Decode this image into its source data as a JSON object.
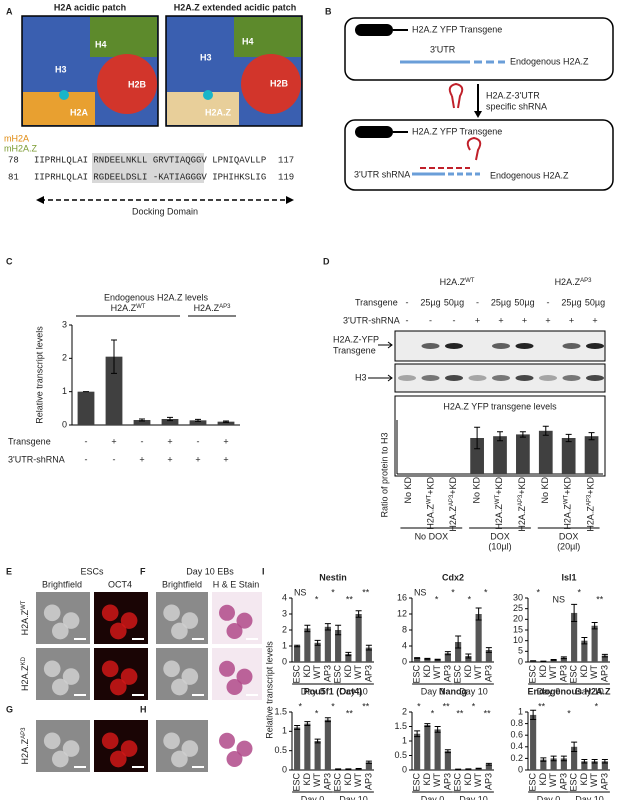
{
  "panels": {
    "A": {
      "letter": "A",
      "titles": [
        "H2A acidic patch",
        "H2A.Z extended acidic patch"
      ],
      "left_labels": [
        "H4",
        "H3",
        "H2B",
        "H2A"
      ],
      "right_labels": [
        "H4",
        "H3",
        "H2B",
        "H2A.Z"
      ],
      "seq_names": [
        "mH2A",
        "mH2A.Z"
      ],
      "seq_lines": [
        {
          "start": "78",
          "seq": "IIPRHLQLAI RNDEELNKLL GRVTIAQGGV LPNIQAVLLP",
          "end": "117"
        },
        {
          "start": "81",
          "seq": "IIPRHLQLAI RGDEELDSLI -KATIAGGGV IPHIHKSLIG",
          "end": "119"
        }
      ],
      "docking": "Docking Domain"
    },
    "B": {
      "letter": "B",
      "top_transgene": "H2A.Z YFP Transgene",
      "top_utr": "3'UTR",
      "top_endogenous": "Endogenous H2A.Z",
      "step": [
        "H2A.Z-3'UTR",
        "specific shRNA"
      ],
      "bottom_transgene": "H2A.Z YFP Transgene",
      "bottom_shrna": "3'UTR shRNA",
      "bottom_endogenous": "Endogenous H2A.Z"
    },
    "D": {
      "letter": "D",
      "groups": [
        {
          "pre": "H2A.Z",
          "sup": "WT"
        },
        {
          "pre": "H2A.Z",
          "sup": "AP3"
        }
      ],
      "row_names": [
        "Transgene",
        "3'UTR-shRNA"
      ],
      "transgene": [
        "-",
        "25µg",
        "50µg",
        "-",
        "25µg",
        "50µg",
        "-",
        "25µg",
        "50µg"
      ],
      "shrna": [
        "-",
        "-",
        "-",
        "+",
        "+",
        "+",
        "+",
        "+",
        "+"
      ],
      "blot_labels": [
        [
          "H2A.Z-YFP",
          "Transgene"
        ],
        [
          "H3"
        ]
      ]
    },
    "E": {
      "letter": "E",
      "title": "ESCs",
      "columns": [
        "Brightfield",
        "OCT4"
      ],
      "rows": [
        {
          "pre": "H2A.Z",
          "sup": "WT"
        },
        {
          "pre": "H2A.Z",
          "sup": "KD"
        }
      ]
    },
    "F": {
      "letter": "F",
      "title": "Day 10 EBs",
      "columns": [
        "Brightfield",
        "H & E Stain"
      ]
    },
    "G": {
      "letter": "G",
      "row": {
        "pre": "H2A.Z",
        "sup": "AP3"
      }
    },
    "H": {
      "letter": "H"
    },
    "I": {
      "letter": "I",
      "ylabel": "Relative transcript levels"
    }
  },
  "chart_data": [
    {
      "type": "bar",
      "panel": "C",
      "title": "Endogenous H2A.Z levels",
      "ylabel": "Relative transcript levels",
      "groups": [
        {
          "pre": "H2A.Z",
          "sup": "WT"
        },
        {
          "pre": "H2A.Z",
          "sup": "AP3"
        }
      ],
      "row_names": [
        "Transgene",
        "3'UTR-shRNA"
      ],
      "categories": [
        null,
        null,
        null,
        null,
        null,
        null
      ],
      "transgene": [
        "-",
        "+",
        "-",
        "+",
        "-",
        "+"
      ],
      "shrna": [
        "-",
        "-",
        "+",
        "+",
        "+",
        "+"
      ],
      "values": [
        1.0,
        2.05,
        0.15,
        0.18,
        0.14,
        0.1
      ],
      "errors": [
        0,
        0.5,
        0.03,
        0.05,
        0.03,
        0.02
      ],
      "ylim": [
        0,
        3
      ],
      "yticks": [
        0,
        1,
        2,
        3
      ],
      "color": "#404040"
    },
    {
      "type": "bar",
      "panel": "D",
      "title": "H2A.Z YFP transgene levels",
      "ylabel": "Ratio of protein to H3",
      "categories": [
        "No KD",
        {
          "pre": "H2A.Z",
          "sup": "WT",
          "post": "+KD"
        },
        {
          "pre": "H2A.Z",
          "sup": "AP3",
          "post": "+KD"
        },
        "No KD",
        {
          "pre": "H2A.Z",
          "sup": "WT",
          "post": "+KD"
        },
        {
          "pre": "H2A.Z",
          "sup": "AP3",
          "post": "+KD"
        },
        "No KD",
        {
          "pre": "H2A.Z",
          "sup": "WT",
          "post": "+KD"
        },
        {
          "pre": "H2A.Z",
          "sup": "AP3",
          "post": "+KD"
        }
      ],
      "groups": [
        [
          "No DOX"
        ],
        [
          "DOX",
          "(10µl)"
        ],
        [
          "DOX",
          "(20µl)"
        ]
      ],
      "values": [
        0,
        0,
        0,
        2.0,
        2.1,
        2.2,
        2.4,
        2.0,
        2.1
      ],
      "errors": [
        0,
        0,
        0,
        0.6,
        0.25,
        0.15,
        0.25,
        0.2,
        0.2
      ],
      "ylim": [
        0,
        3
      ],
      "color": "#404040"
    },
    {
      "type": "bar",
      "panel": "I",
      "title": "Nestin",
      "categories": [
        "ESC",
        "KD",
        "WT",
        "AP3",
        "ESC",
        "KD",
        "WT",
        "AP3"
      ],
      "groups": [
        "Day 0",
        "Day 10"
      ],
      "values": [
        1.0,
        2.1,
        1.2,
        2.2,
        2.0,
        0.5,
        3.0,
        0.9
      ],
      "errors": [
        0.05,
        0.2,
        0.15,
        0.2,
        0.3,
        0.1,
        0.2,
        0.15
      ],
      "ylim": [
        0,
        4
      ],
      "yticks": [
        0,
        1,
        2,
        3,
        4
      ],
      "annotations": [
        "NS",
        "*",
        "*",
        "**",
        "**"
      ],
      "color": "#555555"
    },
    {
      "type": "bar",
      "panel": "I",
      "title": "Cdx2",
      "categories": [
        "ESC",
        "KD",
        "WT",
        "AP3",
        "ESC",
        "KD",
        "WT",
        "AP3"
      ],
      "groups": [
        "Day 0",
        "Day 10"
      ],
      "values": [
        1.0,
        0.8,
        0.6,
        2.2,
        5.0,
        1.5,
        12.0,
        3.0
      ],
      "errors": [
        0.1,
        0.1,
        0.1,
        0.4,
        1.5,
        0.5,
        1.5,
        0.6
      ],
      "ylim": [
        0,
        16
      ],
      "yticks": [
        0,
        4,
        8,
        12,
        16
      ],
      "annotations": [
        "NS",
        "*",
        "*",
        "*",
        "*"
      ],
      "color": "#555555"
    },
    {
      "type": "bar",
      "panel": "I",
      "title": "Isl1",
      "categories": [
        "ESC",
        "KD",
        "WT",
        "AP3",
        "ESC",
        "KD",
        "WT",
        "AP3"
      ],
      "groups": [
        "Day 0",
        "Day 10"
      ],
      "values": [
        0.5,
        0.3,
        1.0,
        2.0,
        23.0,
        10.0,
        17.0,
        3.0
      ],
      "errors": [
        0.1,
        0.1,
        0.2,
        0.4,
        4.0,
        1.5,
        1.5,
        0.6
      ],
      "ylim": [
        0,
        30
      ],
      "yticks": [
        0,
        5,
        10,
        15,
        20,
        25,
        30
      ],
      "annotations": [
        "*",
        "NS",
        "*",
        "**"
      ],
      "color": "#555555"
    },
    {
      "type": "bar",
      "panel": "I",
      "title": "Pou5f1 (Oct4)",
      "categories": [
        "ESC",
        "KD",
        "WT",
        "AP3",
        "ESC",
        "KD",
        "WT",
        "AP3"
      ],
      "groups": [
        "Day 0",
        "Day 10"
      ],
      "values": [
        1.1,
        1.2,
        0.75,
        1.3,
        0.02,
        0.02,
        0.03,
        0.2
      ],
      "errors": [
        0.05,
        0.05,
        0.05,
        0.05,
        0.01,
        0.01,
        0.01,
        0.03
      ],
      "ylim": [
        0,
        1.5
      ],
      "yticks": [
        0,
        0.5,
        1,
        1.5
      ],
      "annotations": [
        "*",
        "*",
        "*",
        "**",
        "**"
      ],
      "color": "#555555"
    },
    {
      "type": "bar",
      "panel": "I",
      "title": "Nanog",
      "categories": [
        "ESC",
        "KD",
        "WT",
        "AP3",
        "ESC",
        "KD",
        "WT",
        "AP3"
      ],
      "groups": [
        "Day 0",
        "Day 10"
      ],
      "values": [
        1.25,
        1.55,
        1.4,
        0.65,
        0.02,
        0.03,
        0.05,
        0.2
      ],
      "errors": [
        0.1,
        0.05,
        0.1,
        0.05,
        0.01,
        0.01,
        0.01,
        0.03
      ],
      "ylim": [
        0,
        2
      ],
      "yticks": [
        0,
        0.5,
        1,
        1.5,
        2
      ],
      "annotations": [
        "*",
        "*",
        "**",
        "**",
        "*",
        "**"
      ],
      "color": "#555555"
    },
    {
      "type": "bar",
      "panel": "I",
      "title": "Endogenous H2A.Z",
      "categories": [
        "ESC",
        "KD",
        "WT",
        "AP3",
        "ESC",
        "KD",
        "WT",
        "AP3"
      ],
      "groups": [
        "Day 0",
        "Day 10"
      ],
      "values": [
        0.95,
        0.18,
        0.2,
        0.2,
        0.4,
        0.15,
        0.15,
        0.15
      ],
      "errors": [
        0.08,
        0.03,
        0.04,
        0.04,
        0.08,
        0.03,
        0.03,
        0.03
      ],
      "ylim": [
        0,
        1
      ],
      "yticks": [
        0,
        0.2,
        0.4,
        0.6,
        0.8,
        1
      ],
      "annotations": [
        "**",
        "*",
        "*"
      ],
      "color": "#555555"
    }
  ]
}
